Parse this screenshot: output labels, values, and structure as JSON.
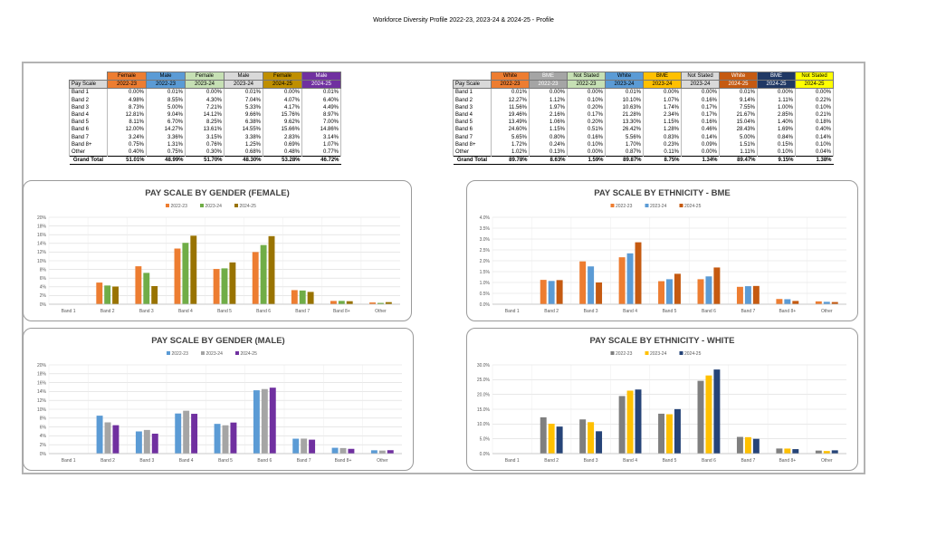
{
  "page_title": "Workforce Diversity Profile 2022-23, 2023-24 & 2024-25 - Profile",
  "colors": {
    "orange": "#ED7D31",
    "blue": "#5B9BD5",
    "green": "#70AD47",
    "gray": "#7F7F7F",
    "darkgold": "#997300",
    "purple": "#7030A0",
    "lightgreen": "#C6E0B4",
    "lightgray": "#D9D9D9",
    "olive": "#BF8F00",
    "lavender": "#CDB3E6",
    "paleorange": "#F8CBAD",
    "darkorange": "#C55A11",
    "navy": "#203864",
    "yellow": "#FFFF00",
    "bme_gray": "#A5A5A5",
    "gold": "#FFC000",
    "darknavy": "#264478"
  },
  "gender_table": {
    "header1": [
      "",
      "Female",
      "Male",
      "Female",
      "Male",
      "Female",
      "Male"
    ],
    "header2": [
      "Pay Scale",
      "2022-23",
      "2022-23",
      "2023-24",
      "2023-24",
      "2024-25",
      "2024-25"
    ],
    "rows": [
      [
        "Band 1",
        "0.00%",
        "0.01%",
        "0.00%",
        "0.01%",
        "0.00%",
        "0.01%"
      ],
      [
        "Band 2",
        "4.98%",
        "8.55%",
        "4.30%",
        "7.04%",
        "4.07%",
        "6.40%"
      ],
      [
        "Band 3",
        "8.73%",
        "5.00%",
        "7.21%",
        "5.33%",
        "4.17%",
        "4.49%"
      ],
      [
        "Band 4",
        "12.81%",
        "9.04%",
        "14.12%",
        "9.66%",
        "15.76%",
        "8.97%"
      ],
      [
        "Band 5",
        "8.11%",
        "6.70%",
        "8.25%",
        "6.38%",
        "9.62%",
        "7.00%"
      ],
      [
        "Band 6",
        "12.00%",
        "14.27%",
        "13.61%",
        "14.55%",
        "15.66%",
        "14.86%"
      ],
      [
        "Band 7",
        "3.24%",
        "3.36%",
        "3.15%",
        "3.38%",
        "2.83%",
        "3.14%"
      ],
      [
        "Band 8+",
        "0.75%",
        "1.31%",
        "0.76%",
        "1.25%",
        "0.69%",
        "1.07%"
      ],
      [
        "Other",
        "0.40%",
        "0.75%",
        "0.30%",
        "0.68%",
        "0.48%",
        "0.77%"
      ]
    ],
    "total": [
      "Grand Total",
      "51.01%",
      "48.99%",
      "51.70%",
      "48.30%",
      "53.28%",
      "46.72%"
    ]
  },
  "ethnicity_table": {
    "header1": [
      "",
      "White",
      "BME",
      "Not Stated",
      "White",
      "BME",
      "Not Stated",
      "White",
      "BME",
      "Not Stated"
    ],
    "header2": [
      "Pay Scale",
      "2022-23",
      "2022-23",
      "2022-23",
      "2023-24",
      "2023-24",
      "2023-24",
      "2024-25",
      "2024-25",
      "2024-25"
    ],
    "rows": [
      [
        "Band 1",
        "0.01%",
        "0.00%",
        "0.00%",
        "0.01%",
        "0.00%",
        "0.00%",
        "0.01%",
        "0.00%",
        "0.00%"
      ],
      [
        "Band 2",
        "12.27%",
        "1.12%",
        "0.10%",
        "10.10%",
        "1.07%",
        "0.16%",
        "9.14%",
        "1.11%",
        "0.22%"
      ],
      [
        "Band 3",
        "11.56%",
        "1.97%",
        "0.20%",
        "10.63%",
        "1.74%",
        "0.17%",
        "7.55%",
        "1.00%",
        "0.10%"
      ],
      [
        "Band 4",
        "19.46%",
        "2.16%",
        "0.17%",
        "21.28%",
        "2.34%",
        "0.17%",
        "21.67%",
        "2.85%",
        "0.21%"
      ],
      [
        "Band 5",
        "13.49%",
        "1.06%",
        "0.20%",
        "13.30%",
        "1.15%",
        "0.16%",
        "15.04%",
        "1.40%",
        "0.18%"
      ],
      [
        "Band 6",
        "24.60%",
        "1.15%",
        "0.51%",
        "26.42%",
        "1.28%",
        "0.46%",
        "28.43%",
        "1.69%",
        "0.40%"
      ],
      [
        "Band 7",
        "5.65%",
        "0.80%",
        "0.16%",
        "5.56%",
        "0.83%",
        "0.14%",
        "5.00%",
        "0.84%",
        "0.14%"
      ],
      [
        "Band 8+",
        "1.72%",
        "0.24%",
        "0.10%",
        "1.70%",
        "0.23%",
        "0.09%",
        "1.51%",
        "0.15%",
        "0.10%"
      ],
      [
        "Other",
        "1.02%",
        "0.13%",
        "0.00%",
        "0.87%",
        "0.11%",
        "0.00%",
        "1.11%",
        "0.10%",
        "0.04%"
      ]
    ],
    "total": [
      "Grand Total",
      "89.78%",
      "8.63%",
      "1.59%",
      "89.87%",
      "8.75%",
      "1.34%",
      "89.47%",
      "9.15%",
      "1.38%"
    ]
  },
  "chart_data": [
    {
      "type": "bar",
      "title": "PAY SCALE BY GENDER (FEMALE)",
      "categories": [
        "Band 1",
        "Band 2",
        "Band 3",
        "Band 4",
        "Band 5",
        "Band 6",
        "Band 7",
        "Band 8+",
        "Other"
      ],
      "series": [
        {
          "name": "2022-23",
          "color": "#ED7D31",
          "values": [
            0.0,
            4.98,
            8.73,
            12.81,
            8.11,
            12.0,
            3.24,
            0.75,
            0.4
          ]
        },
        {
          "name": "2023-24",
          "color": "#70AD47",
          "values": [
            0.0,
            4.3,
            7.21,
            14.12,
            8.25,
            13.61,
            3.15,
            0.76,
            0.3
          ]
        },
        {
          "name": "2024-25",
          "color": "#997300",
          "values": [
            0.0,
            4.07,
            4.17,
            15.76,
            9.62,
            15.66,
            2.83,
            0.69,
            0.48
          ]
        }
      ],
      "ylim": [
        0,
        20
      ],
      "ytick_step": 2,
      "ytick_decimals": 0,
      "legend": "top",
      "grid": true
    },
    {
      "type": "bar",
      "title": "PAY SCALE BY ETHNICITY - BME",
      "categories": [
        "Band 1",
        "Band 2",
        "Band 3",
        "Band 4",
        "Band 5",
        "Band 6",
        "Band 7",
        "Band 8+",
        "Other"
      ],
      "series": [
        {
          "name": "2022-23",
          "color": "#ED7D31",
          "values": [
            0.0,
            1.12,
            1.97,
            2.16,
            1.06,
            1.15,
            0.8,
            0.24,
            0.13
          ]
        },
        {
          "name": "2023-24",
          "color": "#5B9BD5",
          "values": [
            0.0,
            1.07,
            1.74,
            2.34,
            1.15,
            1.28,
            0.83,
            0.23,
            0.11
          ]
        },
        {
          "name": "2024-25",
          "color": "#C55A11",
          "values": [
            0.0,
            1.11,
            1.0,
            2.85,
            1.4,
            1.69,
            0.84,
            0.15,
            0.1
          ]
        }
      ],
      "ylim": [
        0,
        4
      ],
      "ytick_step": 0.5,
      "ytick_decimals": 1,
      "legend": "top",
      "grid": true
    },
    {
      "type": "bar",
      "title": "PAY SCALE BY GENDER (MALE)",
      "categories": [
        "Band 1",
        "Band 2",
        "Band 3",
        "Band 4",
        "Band 5",
        "Band 6",
        "Band 7",
        "Band 8+",
        "Other"
      ],
      "series": [
        {
          "name": "2022-23",
          "color": "#5B9BD5",
          "values": [
            0.01,
            8.55,
            5.0,
            9.04,
            6.7,
            14.27,
            3.36,
            1.31,
            0.75
          ]
        },
        {
          "name": "2023-24",
          "color": "#A5A5A5",
          "values": [
            0.01,
            7.04,
            5.33,
            9.66,
            6.38,
            14.55,
            3.38,
            1.25,
            0.68
          ]
        },
        {
          "name": "2024-25",
          "color": "#7030A0",
          "values": [
            0.01,
            6.4,
            4.49,
            8.97,
            7.0,
            14.86,
            3.14,
            1.07,
            0.77
          ]
        }
      ],
      "ylim": [
        0,
        20
      ],
      "ytick_step": 2,
      "ytick_decimals": 0,
      "legend": "top",
      "grid": true
    },
    {
      "type": "bar",
      "title": "PAY SCALE BY ETHNICITY - WHITE",
      "categories": [
        "Band 1",
        "Band 2",
        "Band 3",
        "Band 4",
        "Band 5",
        "Band 6",
        "Band 7",
        "Band 8+",
        "Other"
      ],
      "series": [
        {
          "name": "2022-23",
          "color": "#7F7F7F",
          "values": [
            0.01,
            12.27,
            11.56,
            19.46,
            13.49,
            24.6,
            5.65,
            1.72,
            1.02
          ]
        },
        {
          "name": "2023-24",
          "color": "#FFC000",
          "values": [
            0.01,
            10.1,
            10.63,
            21.28,
            13.3,
            26.42,
            5.56,
            1.7,
            0.87
          ]
        },
        {
          "name": "2024-25",
          "color": "#264478",
          "values": [
            0.01,
            9.14,
            7.55,
            21.67,
            15.04,
            28.43,
            5.0,
            1.51,
            1.11
          ]
        }
      ],
      "ylim": [
        0,
        30
      ],
      "ytick_step": 5,
      "ytick_decimals": 1,
      "legend": "top",
      "grid": true
    }
  ]
}
